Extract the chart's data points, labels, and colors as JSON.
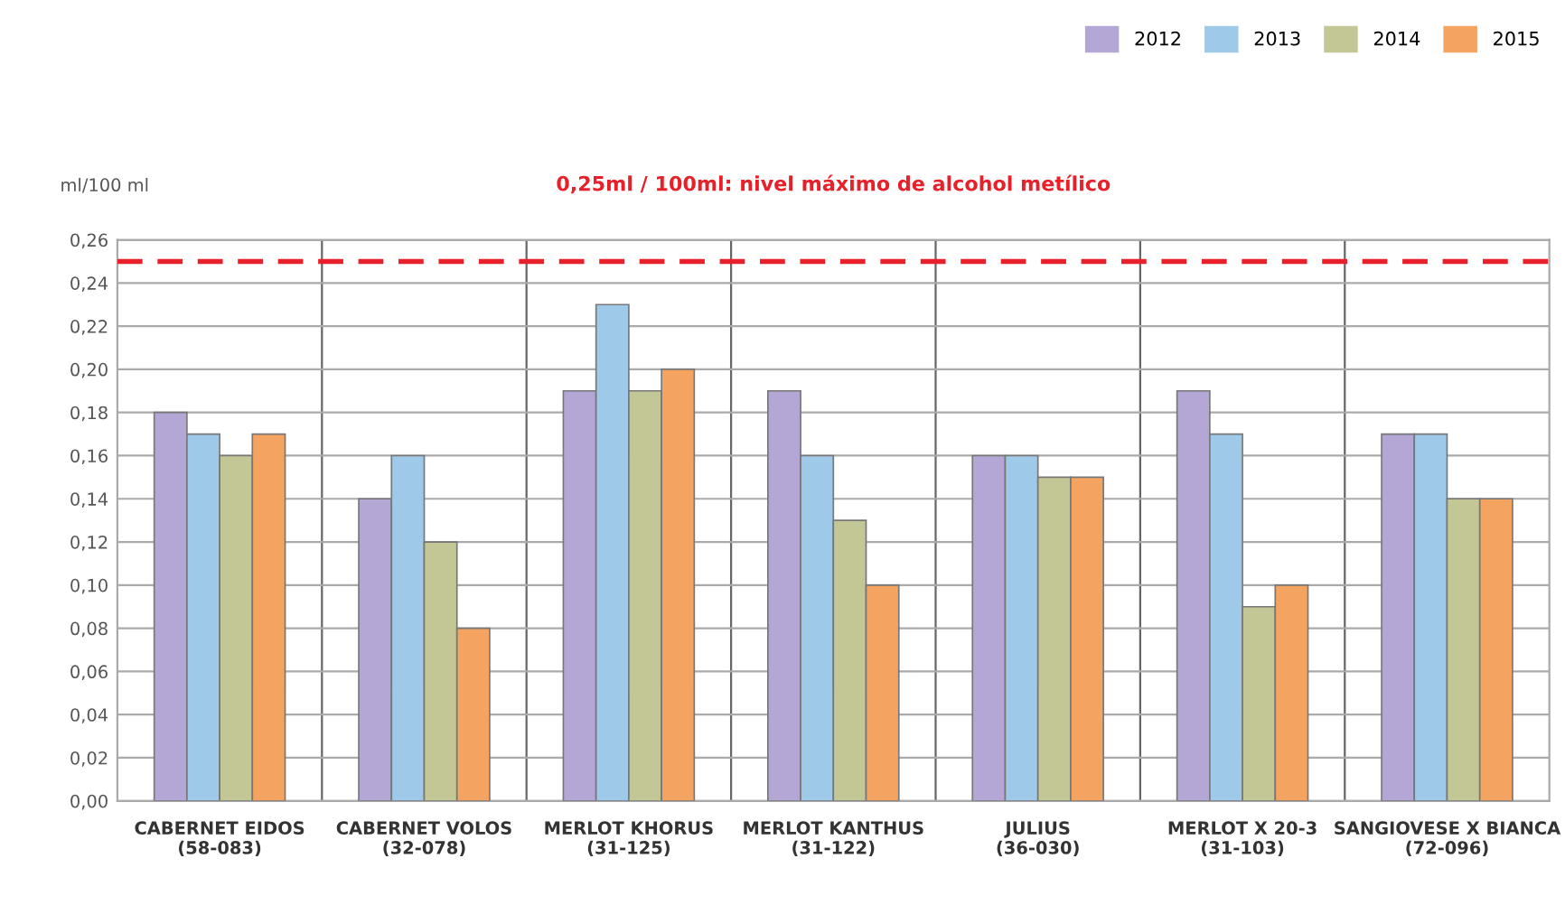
{
  "chart_data": {
    "type": "bar",
    "ylabel": "ml/100 ml",
    "categories": [
      "CABERNET EIDOS\n(58-083)",
      "CABERNET VOLOS\n(32-078)",
      "MERLOT KHORUS\n(31-125)",
      "MERLOT KANTHUS\n(31-122)",
      "JULIUS\n(36-030)",
      "MERLOT X 20-3\n(31-103)",
      "SANGIOVESE X BIANCA\n(72-096)"
    ],
    "series": [
      {
        "name": "2012",
        "color": "#b4a7d6",
        "values": [
          0.18,
          0.14,
          0.19,
          0.19,
          0.16,
          0.19,
          0.17
        ]
      },
      {
        "name": "2013",
        "color": "#9fc9e8",
        "values": [
          0.17,
          0.16,
          0.23,
          0.16,
          0.16,
          0.17,
          0.17
        ]
      },
      {
        "name": "2014",
        "color": "#c3c795",
        "values": [
          0.16,
          0.12,
          0.19,
          0.13,
          0.15,
          0.09,
          0.14
        ]
      },
      {
        "name": "2015",
        "color": "#f4a460",
        "values": [
          0.17,
          0.08,
          0.2,
          0.1,
          0.15,
          0.1,
          0.14
        ]
      }
    ],
    "ylim": [
      0,
      0.26
    ],
    "yticks": [
      {
        "value": 0,
        "label": "0,00"
      },
      {
        "value": 0.02,
        "label": "0,02"
      },
      {
        "value": 0.04,
        "label": "0,04"
      },
      {
        "value": 0.06,
        "label": "0,06"
      },
      {
        "value": 0.08,
        "label": "0,08"
      },
      {
        "value": 0.1,
        "label": "0,10"
      },
      {
        "value": 0.12,
        "label": "0,12"
      },
      {
        "value": 0.14,
        "label": "0,14"
      },
      {
        "value": 0.16,
        "label": "0,16"
      },
      {
        "value": 0.18,
        "label": "0,18"
      },
      {
        "value": 0.2,
        "label": "0,20"
      },
      {
        "value": 0.22,
        "label": "0,22"
      },
      {
        "value": 0.24,
        "label": "0,24"
      },
      {
        "value": 0.26,
        "label": "0,26"
      }
    ],
    "ref_lines": [
      {
        "axis": "y",
        "value": 0.25,
        "label": "0,25ml / 100ml: nivel máximo de alcohol metílico",
        "color": "#e8202a",
        "line_style": "dashed"
      }
    ],
    "grid": true,
    "legend": "top right"
  }
}
